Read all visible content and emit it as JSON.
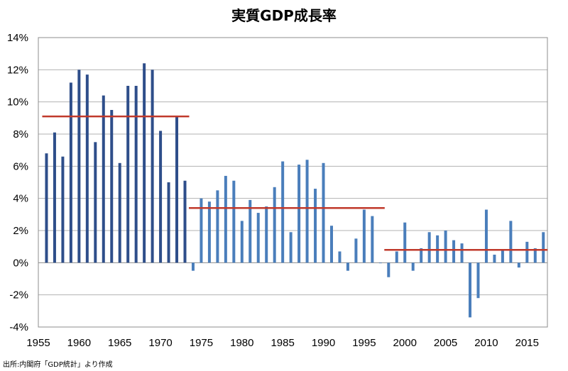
{
  "source_note": "出所:内閣府「GDP統計」より作成",
  "chart_data": {
    "type": "bar",
    "title": "実質GDP成長率",
    "xlabel": "",
    "ylabel": "",
    "ylim": [
      -4,
      14
    ],
    "yticks": [
      -4,
      -2,
      0,
      2,
      4,
      6,
      8,
      10,
      12,
      14
    ],
    "ytick_labels": [
      "-4%",
      "-2%",
      "0%",
      "2%",
      "4%",
      "6%",
      "8%",
      "10%",
      "12%",
      "14%"
    ],
    "xticks": [
      1955,
      1960,
      1965,
      1970,
      1975,
      1980,
      1985,
      1990,
      1995,
      2000,
      2005,
      2010,
      2015
    ],
    "xlim": [
      1955,
      2017.5
    ],
    "grid": true,
    "x": [
      1956,
      1957,
      1958,
      1959,
      1960,
      1961,
      1962,
      1963,
      1964,
      1965,
      1966,
      1967,
      1968,
      1969,
      1970,
      1971,
      1972,
      1973,
      1974,
      1975,
      1976,
      1977,
      1978,
      1979,
      1980,
      1981,
      1982,
      1983,
      1984,
      1985,
      1986,
      1987,
      1988,
      1989,
      1990,
      1991,
      1992,
      1993,
      1994,
      1995,
      1996,
      1997,
      1998,
      1999,
      2000,
      2001,
      2002,
      2003,
      2004,
      2005,
      2006,
      2007,
      2008,
      2009,
      2010,
      2011,
      2012,
      2013,
      2014,
      2015,
      2016,
      2017
    ],
    "values": [
      6.8,
      8.1,
      6.6,
      11.2,
      12.0,
      11.7,
      7.5,
      10.4,
      9.5,
      6.2,
      11.0,
      11.0,
      12.4,
      12.0,
      8.2,
      5.0,
      9.1,
      5.1,
      -0.5,
      4.0,
      3.8,
      4.5,
      5.4,
      5.1,
      2.6,
      3.9,
      3.1,
      3.5,
      4.7,
      6.3,
      1.9,
      6.1,
      6.4,
      4.6,
      6.2,
      2.3,
      0.7,
      -0.5,
      1.5,
      3.3,
      2.9,
      0.0,
      -0.9,
      0.7,
      2.5,
      -0.5,
      0.9,
      1.9,
      1.7,
      2.0,
      1.4,
      1.2,
      -3.4,
      -2.2,
      3.3,
      0.5,
      0.8,
      2.6,
      -0.3,
      1.3,
      0.9,
      1.9
    ],
    "series_color_early": "#2E4E8A",
    "series_color_late": "#4A7EBB",
    "average_lines": [
      {
        "x_start": 1956,
        "x_end": 1973,
        "value": 9.1,
        "color": "#C0392B"
      },
      {
        "x_start": 1974,
        "x_end": 1997,
        "value": 3.4,
        "color": "#C0392B"
      },
      {
        "x_start": 1998,
        "x_end": 2017,
        "value": 0.8,
        "color": "#C0392B"
      }
    ]
  }
}
